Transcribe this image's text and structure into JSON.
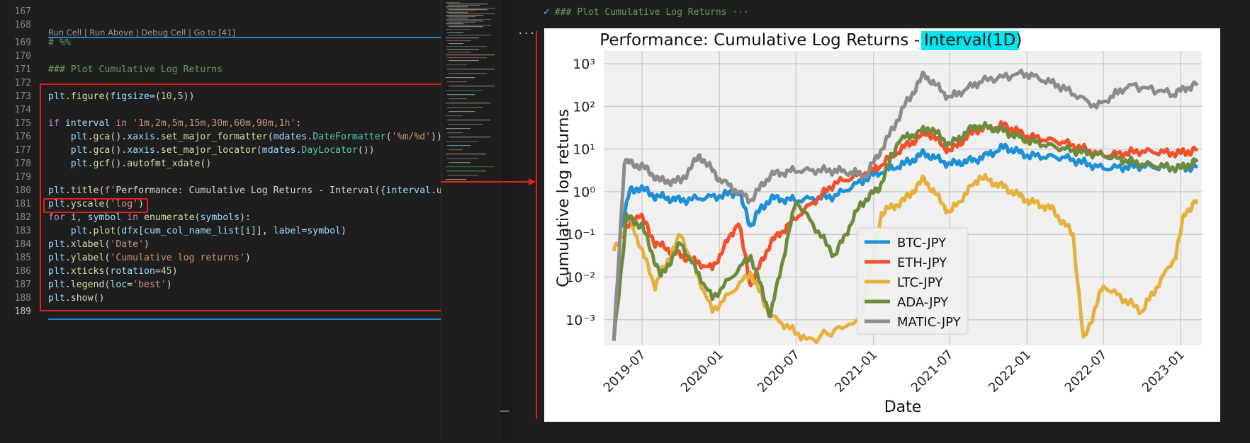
{
  "editor": {
    "codelens": "Run Cell | Run Above | Debug Cell | Go to [41]",
    "line_numbers": [
      "167",
      "168",
      "169",
      "170",
      "171",
      "172",
      "173",
      "174",
      "175",
      "176",
      "177",
      "178",
      "179",
      "180",
      "181",
      "182",
      "183",
      "184",
      "185",
      "186",
      "187",
      "188",
      "189"
    ],
    "lines": [
      "",
      "",
      "# %%",
      "",
      "### Plot Cumulative Log Returns",
      "",
      "plt.figure(figsize=(10,5))",
      "",
      "if interval in '1m,2m,5m,15m,30m,60m,90m,1h':",
      "    plt.gca().xaxis.set_major_formatter(mdates.DateFormatter('%m/%d'))",
      "    plt.gca().xaxis.set_major_locator(mdates.DayLocator())",
      "    plt.gcf().autofmt_xdate()",
      "",
      "plt.title(f'Performance: Cumulative Log Returns - Interval({interval.upp",
      "plt.yscale('log')",
      "for i, symbol in enumerate(symbols):",
      "    plt.plot(dfx[cum_col_name_list[i]], label=symbol)",
      "plt.xlabel('Date')",
      "plt.ylabel('Cumulative log returns')",
      "plt.xticks(rotation=45)",
      "plt.legend(loc='best')",
      "plt.show()",
      ""
    ]
  },
  "output": {
    "header": "### Plot Cumulative Log Returns ···",
    "more": "···"
  },
  "chart_data": {
    "type": "line",
    "title": "Performance: Cumulative Log Returns - ",
    "title_highlight": "Interval(1D)",
    "xlabel": "Date",
    "ylabel": "Cumulative log returns",
    "yscale": "log",
    "ylim_exp": [
      -3.6,
      3.3
    ],
    "ytick_exponents": [
      -3,
      -2,
      -1,
      0,
      1,
      2,
      3
    ],
    "ytick_labels": [
      "10⁻³",
      "10⁻²",
      "10⁻¹",
      "10⁰",
      "10¹",
      "10²",
      "10³"
    ],
    "x_range": [
      "2019-04-01",
      "2023-02-20"
    ],
    "xtick_labels": [
      "2019-07",
      "2020-01",
      "2020-07",
      "2021-01",
      "2021-07",
      "2022-01",
      "2022-07",
      "2023-01"
    ],
    "legend_loc": "lower-center",
    "series": [
      {
        "name": "BTC-JPY",
        "color": "#1f8fd6",
        "points": [
          [
            "2019-05-15",
            -0.8
          ],
          [
            "2019-06-01",
            0.0
          ],
          [
            "2019-06-25",
            0.1
          ],
          [
            "2019-08-01",
            -0.1
          ],
          [
            "2019-10-01",
            -0.2
          ],
          [
            "2020-01-01",
            -0.1
          ],
          [
            "2020-02-15",
            0.0
          ],
          [
            "2020-03-15",
            -0.8
          ],
          [
            "2020-04-01",
            -0.5
          ],
          [
            "2020-05-01",
            -0.15
          ],
          [
            "2020-07-01",
            -0.2
          ],
          [
            "2020-10-01",
            -0.1
          ],
          [
            "2021-01-01",
            0.4
          ],
          [
            "2021-03-15",
            0.65
          ],
          [
            "2021-05-01",
            0.9
          ],
          [
            "2021-07-01",
            0.65
          ],
          [
            "2021-09-01",
            0.75
          ],
          [
            "2021-11-10",
            1.05
          ],
          [
            "2022-01-01",
            0.85
          ],
          [
            "2022-04-01",
            0.8
          ],
          [
            "2022-07-01",
            0.55
          ],
          [
            "2022-10-01",
            0.6
          ],
          [
            "2023-01-01",
            0.55
          ],
          [
            "2023-02-10",
            0.6
          ]
        ]
      },
      {
        "name": "ETH-JPY",
        "color": "#f0502a",
        "points": [
          [
            "2019-05-15",
            -1.0
          ],
          [
            "2019-06-25",
            -0.5
          ],
          [
            "2019-08-01",
            -1.2
          ],
          [
            "2019-10-01",
            -1.5
          ],
          [
            "2019-12-15",
            -1.8
          ],
          [
            "2020-02-15",
            -0.7
          ],
          [
            "2020-03-15",
            -2.2
          ],
          [
            "2020-05-01",
            -1.2
          ],
          [
            "2020-07-01",
            -0.6
          ],
          [
            "2020-10-01",
            0.2
          ],
          [
            "2021-01-01",
            0.5
          ],
          [
            "2021-03-15",
            1.05
          ],
          [
            "2021-05-10",
            1.4
          ],
          [
            "2021-07-01",
            0.95
          ],
          [
            "2021-09-01",
            1.45
          ],
          [
            "2021-11-10",
            1.55
          ],
          [
            "2022-01-01",
            1.3
          ],
          [
            "2022-04-01",
            1.15
          ],
          [
            "2022-07-01",
            0.85
          ],
          [
            "2022-10-01",
            0.95
          ],
          [
            "2023-01-01",
            0.9
          ],
          [
            "2023-02-10",
            1.0
          ]
        ]
      },
      {
        "name": "LTC-JPY",
        "color": "#e5b13b",
        "points": [
          [
            "2019-04-25",
            -1.4
          ],
          [
            "2019-06-01",
            -0.6
          ],
          [
            "2019-08-01",
            -2.2
          ],
          [
            "2019-10-01",
            -1.0
          ],
          [
            "2019-12-15",
            -2.8
          ],
          [
            "2020-03-15",
            -1.9
          ],
          [
            "2020-05-01",
            -2.9
          ],
          [
            "2020-08-01",
            -3.5
          ],
          [
            "2020-12-01",
            -3.0
          ],
          [
            "2021-01-20",
            -0.5
          ],
          [
            "2021-03-15",
            -0.2
          ],
          [
            "2021-05-01",
            0.3
          ],
          [
            "2021-07-01",
            -0.5
          ],
          [
            "2021-09-10",
            0.35
          ],
          [
            "2021-11-10",
            0.1
          ],
          [
            "2022-01-01",
            -0.2
          ],
          [
            "2022-03-01",
            -0.4
          ],
          [
            "2022-04-20",
            -1.0
          ],
          [
            "2022-05-15",
            -3.5
          ],
          [
            "2022-07-01",
            -2.2
          ],
          [
            "2022-10-01",
            -2.8
          ],
          [
            "2022-12-20",
            -1.5
          ],
          [
            "2023-01-10",
            -0.5
          ],
          [
            "2023-02-10",
            -0.2
          ]
        ]
      },
      {
        "name": "ADA-JPY",
        "color": "#6e8b3d",
        "points": [
          [
            "2019-04-25",
            -3.5
          ],
          [
            "2019-05-25",
            -0.6
          ],
          [
            "2019-07-01",
            -0.8
          ],
          [
            "2019-08-15",
            -2.0
          ],
          [
            "2019-10-01",
            -1.2
          ],
          [
            "2019-12-15",
            -2.5
          ],
          [
            "2020-03-15",
            -1.5
          ],
          [
            "2020-05-01",
            -2.9
          ],
          [
            "2020-07-01",
            -0.2
          ],
          [
            "2020-10-01",
            -1.5
          ],
          [
            "2020-12-01",
            -0.3
          ],
          [
            "2021-01-15",
            0.1
          ],
          [
            "2021-03-01",
            1.2
          ],
          [
            "2021-05-15",
            1.5
          ],
          [
            "2021-07-01",
            1.1
          ],
          [
            "2021-09-01",
            1.55
          ],
          [
            "2021-11-01",
            1.45
          ],
          [
            "2022-01-01",
            1.2
          ],
          [
            "2022-04-01",
            1.0
          ],
          [
            "2022-07-01",
            0.85
          ],
          [
            "2022-10-01",
            0.65
          ],
          [
            "2023-01-01",
            0.55
          ],
          [
            "2023-02-10",
            0.75
          ]
        ]
      },
      {
        "name": "MATIC-JPY",
        "color": "#8c8c8c",
        "points": [
          [
            "2019-04-25",
            -3.5
          ],
          [
            "2019-05-20",
            0.7
          ],
          [
            "2019-07-01",
            0.6
          ],
          [
            "2019-08-15",
            0.25
          ],
          [
            "2019-10-01",
            0.25
          ],
          [
            "2019-11-15",
            0.85
          ],
          [
            "2020-01-01",
            0.3
          ],
          [
            "2020-03-15",
            -0.2
          ],
          [
            "2020-05-01",
            0.4
          ],
          [
            "2020-07-01",
            0.5
          ],
          [
            "2020-10-01",
            0.5
          ],
          [
            "2020-12-15",
            0.4
          ],
          [
            "2021-02-01",
            1.2
          ],
          [
            "2021-03-15",
            2.0
          ],
          [
            "2021-05-01",
            2.75
          ],
          [
            "2021-07-01",
            2.2
          ],
          [
            "2021-09-15",
            2.6
          ],
          [
            "2021-12-25",
            2.78
          ],
          [
            "2022-03-15",
            2.5
          ],
          [
            "2022-06-15",
            2.0
          ],
          [
            "2022-09-01",
            2.5
          ],
          [
            "2022-12-15",
            2.3
          ],
          [
            "2023-02-10",
            2.55
          ]
        ]
      }
    ]
  }
}
